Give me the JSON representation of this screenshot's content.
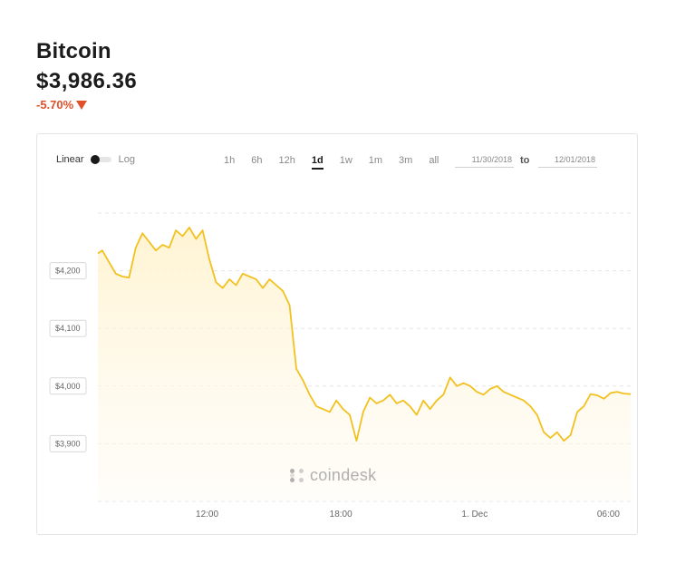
{
  "header": {
    "asset_name": "Bitcoin",
    "price": "$3,986.36",
    "change": "-5.70%",
    "change_color": "#e0512a"
  },
  "controls": {
    "scale_linear": "Linear",
    "scale_log": "Log",
    "ranges": [
      "1h",
      "6h",
      "12h",
      "1d",
      "1w",
      "1m",
      "3m",
      "all"
    ],
    "active_range": "1d",
    "date_from": "11/30/2018",
    "date_to": "12/01/2018",
    "to_label": "to"
  },
  "watermark": "coindesk",
  "chart_data": {
    "type": "area",
    "line_color": "#f2c120",
    "fill_color": "#fff6dc",
    "grid": true,
    "x_ticks": [
      "12:00",
      "18:00",
      "1. Dec",
      "06:00"
    ],
    "x_tick_hours": [
      12,
      18,
      24,
      30
    ],
    "x_range_hours": [
      7.1,
      31.0
    ],
    "y_ticks": [
      "$3,900",
      "$4,000",
      "$4,100",
      "$4,200"
    ],
    "y_tick_values": [
      3900,
      4000,
      4100,
      4200
    ],
    "ylim": [
      3800,
      4300
    ],
    "series": [
      {
        "x": [
          7.1,
          7.3,
          7.6,
          7.9,
          8.2,
          8.5,
          8.8,
          9.1,
          9.4,
          9.7,
          10.0,
          10.3,
          10.6,
          10.9,
          11.2,
          11.5,
          11.8,
          12.1,
          12.4,
          12.7,
          13.0,
          13.3,
          13.6,
          13.9,
          14.2,
          14.5,
          14.8,
          15.1,
          15.4,
          15.7,
          16.0,
          16.3,
          16.6,
          16.9,
          17.2,
          17.5,
          17.8,
          18.1,
          18.4,
          18.7,
          19.0,
          19.3,
          19.6,
          19.9,
          20.2,
          20.5,
          20.8,
          21.1,
          21.4,
          21.7,
          22.0,
          22.3,
          22.6,
          22.9,
          23.2,
          23.5,
          23.8,
          24.1,
          24.4,
          24.7,
          25.0,
          25.3,
          25.6,
          25.9,
          26.2,
          26.5,
          26.8,
          27.1,
          27.4,
          27.7,
          28.0,
          28.3,
          28.6,
          28.9,
          29.2,
          29.5,
          29.8,
          30.1,
          30.4,
          30.7,
          31.0
        ],
        "values": [
          4230,
          4235,
          4215,
          4195,
          4190,
          4188,
          4240,
          4265,
          4250,
          4235,
          4245,
          4240,
          4270,
          4260,
          4275,
          4255,
          4270,
          4220,
          4180,
          4170,
          4185,
          4175,
          4195,
          4190,
          4185,
          4170,
          4185,
          4175,
          4165,
          4140,
          4030,
          4010,
          3985,
          3965,
          3960,
          3955,
          3975,
          3960,
          3950,
          3905,
          3955,
          3980,
          3970,
          3975,
          3985,
          3970,
          3975,
          3965,
          3950,
          3975,
          3960,
          3975,
          3985,
          4015,
          4000,
          4005,
          4000,
          3990,
          3985,
          3995,
          4000,
          3990,
          3985,
          3980,
          3975,
          3965,
          3950,
          3920,
          3910,
          3920,
          3905,
          3915,
          3955,
          3965,
          3986,
          3984,
          3978,
          3988,
          3990,
          3987,
          3986
        ]
      }
    ]
  }
}
